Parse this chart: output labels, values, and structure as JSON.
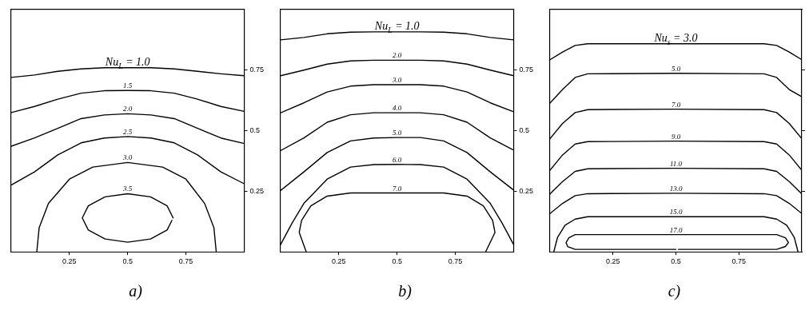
{
  "chart_data": [
    {
      "type": "line",
      "title": "a)",
      "xlim": [
        0,
        1
      ],
      "ylim": [
        0,
        1
      ],
      "xticks": [
        0.25,
        0.5,
        0.75
      ],
      "yticks": [
        0.25,
        0.5,
        0.75
      ],
      "series": [
        {
          "name": "Nu$_{L}$ = 1.0",
          "color": "#000000",
          "x": [
            0,
            0.1,
            0.2,
            0.3,
            0.4,
            0.5,
            0.6,
            0.7,
            0.8,
            0.9,
            1
          ],
          "values": [
            0.72,
            0.73,
            0.745,
            0.755,
            0.76,
            0.76,
            0.76,
            0.755,
            0.745,
            0.735,
            0.727
          ]
        },
        {
          "name": "1.5",
          "color": "#000000",
          "x": [
            0,
            0.1,
            0.2,
            0.3,
            0.4,
            0.5,
            0.6,
            0.7,
            0.8,
            0.9,
            1
          ],
          "values": [
            0.575,
            0.6,
            0.63,
            0.655,
            0.665,
            0.666,
            0.665,
            0.655,
            0.63,
            0.6,
            0.58
          ]
        },
        {
          "name": "2.0",
          "color": "#000000",
          "x": [
            0,
            0.1,
            0.2,
            0.3,
            0.4,
            0.5,
            0.6,
            0.7,
            0.8,
            0.9,
            1
          ],
          "values": [
            0.436,
            0.47,
            0.51,
            0.55,
            0.565,
            0.57,
            0.565,
            0.55,
            0.51,
            0.47,
            0.447
          ]
        },
        {
          "name": "2.5",
          "color": "#000000",
          "x": [
            0,
            0.1,
            0.2,
            0.3,
            0.4,
            0.5,
            0.6,
            0.7,
            0.8,
            0.9,
            1
          ],
          "values": [
            0.276,
            0.33,
            0.4,
            0.45,
            0.47,
            0.476,
            0.47,
            0.45,
            0.4,
            0.33,
            0.281
          ]
        },
        {
          "name": "3.0",
          "color": "#000000",
          "x": [
            0.11,
            0.12,
            0.16,
            0.25,
            0.35,
            0.5,
            0.65,
            0.75,
            0.83,
            0.87,
            0.88
          ],
          "values": [
            0,
            0.1,
            0.2,
            0.3,
            0.35,
            0.369,
            0.35,
            0.3,
            0.2,
            0.1,
            0
          ]
        },
        {
          "name": "3.5",
          "color": "#000000",
          "x": [
            0.695,
            0.669,
            0.598,
            0.5,
            0.403,
            0.331,
            0.305,
            0.331,
            0.403,
            0.5,
            0.598,
            0.669,
            0.69
          ],
          "values": [
            0.14,
            0.19,
            0.227,
            0.24,
            0.227,
            0.19,
            0.14,
            0.09,
            0.053,
            0.04,
            0.053,
            0.09,
            0.13
          ]
        }
      ]
    },
    {
      "type": "line",
      "title": "b)",
      "xlim": [
        0,
        1
      ],
      "ylim": [
        0,
        1
      ],
      "xticks": [
        0.25,
        0.5,
        0.75
      ],
      "yticks": [
        0.25,
        0.5,
        0.75
      ],
      "series": [
        {
          "name": "Nu$_{L}$ = 1.0",
          "color": "#000000",
          "x": [
            0,
            0.1,
            0.2,
            0.3,
            0.4,
            0.5,
            0.6,
            0.7,
            0.8,
            0.9,
            1
          ],
          "values": [
            0.875,
            0.885,
            0.9,
            0.907,
            0.908,
            0.908,
            0.908,
            0.907,
            0.9,
            0.885,
            0.875
          ]
        },
        {
          "name": "2.0",
          "color": "#000000",
          "x": [
            0,
            0.1,
            0.2,
            0.3,
            0.4,
            0.5,
            0.6,
            0.7,
            0.8,
            0.9,
            1
          ],
          "values": [
            0.727,
            0.75,
            0.775,
            0.788,
            0.791,
            0.791,
            0.791,
            0.788,
            0.775,
            0.75,
            0.727
          ]
        },
        {
          "name": "3.0",
          "color": "#000000",
          "x": [
            0,
            0.1,
            0.2,
            0.3,
            0.4,
            0.5,
            0.6,
            0.7,
            0.8,
            0.9,
            1
          ],
          "values": [
            0.574,
            0.615,
            0.66,
            0.684,
            0.69,
            0.69,
            0.69,
            0.684,
            0.66,
            0.615,
            0.578
          ]
        },
        {
          "name": "4.0",
          "color": "#000000",
          "x": [
            0,
            0.1,
            0.2,
            0.3,
            0.4,
            0.5,
            0.6,
            0.7,
            0.8,
            0.9,
            1
          ],
          "values": [
            0.418,
            0.47,
            0.535,
            0.566,
            0.574,
            0.574,
            0.574,
            0.566,
            0.535,
            0.47,
            0.42
          ]
        },
        {
          "name": "5.0",
          "color": "#000000",
          "x": [
            0,
            0.1,
            0.2,
            0.3,
            0.4,
            0.5,
            0.6,
            0.7,
            0.8,
            0.9,
            1
          ],
          "values": [
            0.253,
            0.33,
            0.41,
            0.458,
            0.47,
            0.472,
            0.472,
            0.458,
            0.41,
            0.33,
            0.255
          ]
        },
        {
          "name": "6.0",
          "color": "#000000",
          "x": [
            0,
            0.05,
            0.1,
            0.2,
            0.3,
            0.4,
            0.5,
            0.6,
            0.7,
            0.8,
            0.9,
            0.95,
            1
          ],
          "values": [
            0.03,
            0.12,
            0.2,
            0.3,
            0.35,
            0.36,
            0.361,
            0.36,
            0.35,
            0.3,
            0.2,
            0.12,
            0.03
          ]
        },
        {
          "name": "7.0",
          "color": "#000000",
          "x": [
            0.11,
            0.08,
            0.09,
            0.13,
            0.2,
            0.3,
            0.5,
            0.7,
            0.8,
            0.87,
            0.91,
            0.92,
            0.88
          ],
          "values": [
            0,
            0.08,
            0.13,
            0.19,
            0.23,
            0.243,
            0.243,
            0.243,
            0.23,
            0.19,
            0.13,
            0.08,
            0
          ]
        }
      ]
    },
    {
      "type": "line",
      "title": "c)",
      "xlim": [
        0,
        1
      ],
      "ylim": [
        0,
        1
      ],
      "xticks": [
        0.25,
        0.5,
        0.75
      ],
      "yticks": [
        0.25,
        0.5,
        0.75
      ],
      "tick_labels": "x",
      "series": [
        {
          "name": "Nu$_{s}$ = 3.0",
          "color": "#000000",
          "x": [
            0,
            0.05,
            0.1,
            0.15,
            0.5,
            0.85,
            0.9,
            0.95,
            1
          ],
          "values": [
            0.793,
            0.825,
            0.852,
            0.859,
            0.859,
            0.859,
            0.852,
            0.825,
            0.793
          ]
        },
        {
          "name": "5.0",
          "color": "#000000",
          "x": [
            0,
            0.05,
            0.1,
            0.15,
            0.5,
            0.85,
            0.9,
            0.95,
            1
          ],
          "values": [
            0.614,
            0.67,
            0.72,
            0.735,
            0.737,
            0.735,
            0.72,
            0.67,
            0.64
          ]
        },
        {
          "name": "7.0",
          "color": "#000000",
          "x": [
            0,
            0.05,
            0.1,
            0.15,
            0.5,
            0.85,
            0.9,
            0.95,
            1
          ],
          "values": [
            0.467,
            0.53,
            0.575,
            0.587,
            0.589,
            0.587,
            0.575,
            0.53,
            0.467
          ]
        },
        {
          "name": "9.0",
          "color": "#000000",
          "x": [
            0,
            0.05,
            0.1,
            0.15,
            0.5,
            0.85,
            0.9,
            0.95,
            1
          ],
          "values": [
            0.337,
            0.4,
            0.445,
            0.455,
            0.457,
            0.455,
            0.445,
            0.4,
            0.337
          ]
        },
        {
          "name": "11.0",
          "color": "#000000",
          "x": [
            0,
            0.05,
            0.1,
            0.15,
            0.5,
            0.85,
            0.9,
            0.95,
            1
          ],
          "values": [
            0.239,
            0.29,
            0.332,
            0.343,
            0.345,
            0.343,
            0.332,
            0.29,
            0.239
          ]
        },
        {
          "name": "13.0",
          "color": "#000000",
          "x": [
            0,
            0.05,
            0.1,
            0.15,
            0.5,
            0.85,
            0.9,
            0.95,
            1
          ],
          "values": [
            0.158,
            0.2,
            0.232,
            0.24,
            0.242,
            0.24,
            0.232,
            0.2,
            0.158
          ]
        },
        {
          "name": "15.0",
          "color": "#000000",
          "x": [
            0.015,
            0.03,
            0.06,
            0.1,
            0.15,
            0.5,
            0.85,
            0.9,
            0.94,
            0.97,
            0.985
          ],
          "values": [
            0,
            0.06,
            0.11,
            0.135,
            0.145,
            0.145,
            0.145,
            0.135,
            0.11,
            0.06,
            0
          ]
        },
        {
          "name": "17.0",
          "color": "#000000",
          "x": [
            0.5,
            0.1,
            0.07,
            0.064,
            0.075,
            0.1,
            0.5,
            0.9,
            0.935,
            0.947,
            0.935,
            0.9,
            0.51
          ],
          "values": [
            0.01,
            0.01,
            0.022,
            0.038,
            0.058,
            0.071,
            0.071,
            0.071,
            0.058,
            0.038,
            0.022,
            0.01,
            0.01
          ]
        }
      ]
    }
  ]
}
